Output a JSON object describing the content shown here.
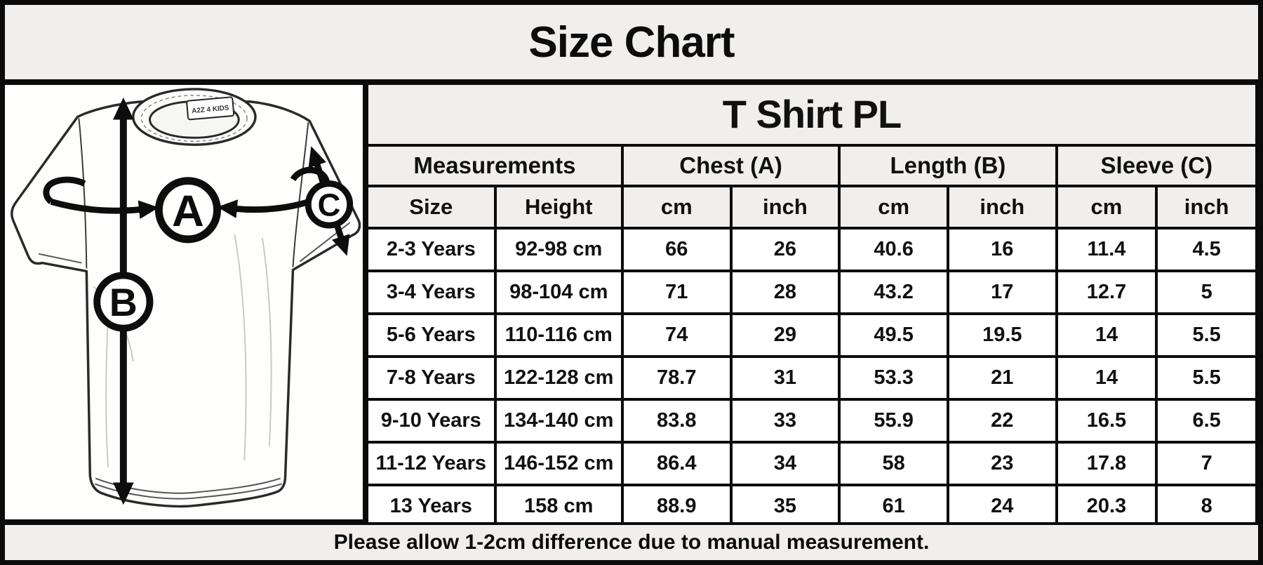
{
  "page": {
    "title": "Size Chart",
    "footer_note": "Please allow 1-2cm difference due to manual measurement."
  },
  "diagram": {
    "tag_label": "A2Z 4 KIDS",
    "chest_marker": "A",
    "length_marker": "B",
    "sleeve_marker": "C"
  },
  "table": {
    "title": "T Shirt PL",
    "group_headers": [
      "Measurements",
      "Chest (A)",
      "Length (B)",
      "Sleeve (C)"
    ],
    "sub_headers": [
      "Size",
      "Height",
      "cm",
      "inch",
      "cm",
      "inch",
      "cm",
      "inch"
    ],
    "rows": [
      [
        "2-3 Years",
        "92-98 cm",
        "66",
        "26",
        "40.6",
        "16",
        "11.4",
        "4.5"
      ],
      [
        "3-4 Years",
        "98-104 cm",
        "71",
        "28",
        "43.2",
        "17",
        "12.7",
        "5"
      ],
      [
        "5-6 Years",
        "110-116 cm",
        "74",
        "29",
        "49.5",
        "19.5",
        "14",
        "5.5"
      ],
      [
        "7-8 Years",
        "122-128 cm",
        "78.7",
        "31",
        "53.3",
        "21",
        "14",
        "5.5"
      ],
      [
        "9-10 Years",
        "134-140 cm",
        "83.8",
        "33",
        "55.9",
        "22",
        "16.5",
        "6.5"
      ],
      [
        "11-12 Years",
        "146-152 cm",
        "86.4",
        "34",
        "58",
        "23",
        "17.8",
        "7"
      ],
      [
        "13 Years",
        "158 cm",
        "88.9",
        "35",
        "61",
        "24",
        "20.3",
        "8"
      ]
    ]
  },
  "colors": {
    "band_bg": "#f0efed",
    "cell_bg": "#ffffff",
    "border": "#0b0b0b",
    "text": "#111111"
  },
  "chart_data": {
    "type": "table",
    "title": "T Shirt PL",
    "columns": [
      "Size",
      "Height",
      "Chest (A) cm",
      "Chest (A) inch",
      "Length (B) cm",
      "Length (B) inch",
      "Sleeve (C) cm",
      "Sleeve (C) inch"
    ],
    "rows": [
      [
        "2-3 Years",
        "92-98 cm",
        66,
        26,
        40.6,
        16,
        11.4,
        4.5
      ],
      [
        "3-4 Years",
        "98-104 cm",
        71,
        28,
        43.2,
        17,
        12.7,
        5
      ],
      [
        "5-6 Years",
        "110-116 cm",
        74,
        29,
        49.5,
        19.5,
        14,
        5.5
      ],
      [
        "7-8 Years",
        "122-128 cm",
        78.7,
        31,
        53.3,
        21,
        14,
        5.5
      ],
      [
        "9-10 Years",
        "134-140 cm",
        83.8,
        33,
        55.9,
        22,
        16.5,
        6.5
      ],
      [
        "11-12 Years",
        "146-152 cm",
        86.4,
        34,
        58,
        23,
        17.8,
        7
      ],
      [
        "13 Years",
        "158 cm",
        88.9,
        35,
        61,
        24,
        20.3,
        8
      ]
    ],
    "note": "Please allow 1-2cm difference due to manual measurement."
  }
}
